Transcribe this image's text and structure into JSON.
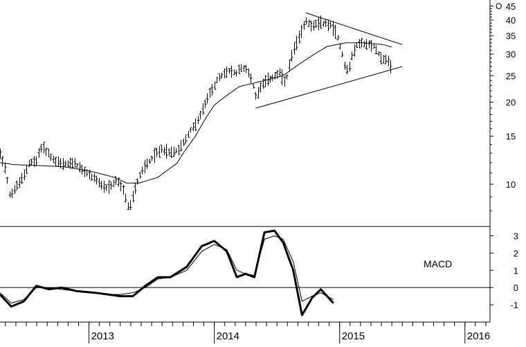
{
  "chart_data": [
    {
      "type": "ohlc",
      "scale": "log",
      "ylim": [
        7,
        46
      ],
      "yticks": [
        10,
        15,
        20,
        25,
        30,
        35,
        40,
        45
      ],
      "xlabels": [
        {
          "label": "2013",
          "t": 2013.0
        },
        {
          "label": "2014",
          "t": 2014.0
        },
        {
          "label": "2015",
          "t": 2015.0
        },
        {
          "label": "2016",
          "t": 2016.0
        }
      ],
      "price_anchors": [
        [
          2012.29,
          13.0
        ],
        [
          2012.33,
          11.5
        ],
        [
          2012.37,
          9.0
        ],
        [
          2012.42,
          9.8
        ],
        [
          2012.47,
          10.5
        ],
        [
          2012.52,
          12.0
        ],
        [
          2012.58,
          12.2
        ],
        [
          2012.62,
          13.8
        ],
        [
          2012.67,
          13.0
        ],
        [
          2012.72,
          12.2
        ],
        [
          2012.8,
          11.8
        ],
        [
          2012.88,
          12.0
        ],
        [
          2012.95,
          11.2
        ],
        [
          2013.05,
          10.5
        ],
        [
          2013.12,
          9.6
        ],
        [
          2013.17,
          9.8
        ],
        [
          2013.22,
          10.4
        ],
        [
          2013.27,
          9.5
        ],
        [
          2013.32,
          8.0
        ],
        [
          2013.36,
          9.5
        ],
        [
          2013.42,
          11.2
        ],
        [
          2013.5,
          12.5
        ],
        [
          2013.58,
          13.5
        ],
        [
          2013.65,
          13.0
        ],
        [
          2013.72,
          13.5
        ],
        [
          2013.8,
          15.5
        ],
        [
          2013.88,
          17.5
        ],
        [
          2013.95,
          21.0
        ],
        [
          2014.02,
          24.0
        ],
        [
          2014.1,
          26.0
        ],
        [
          2014.17,
          25.5
        ],
        [
          2014.22,
          27.0
        ],
        [
          2014.28,
          25.5
        ],
        [
          2014.33,
          21.0
        ],
        [
          2014.38,
          23.5
        ],
        [
          2014.45,
          24.5
        ],
        [
          2014.52,
          25.5
        ],
        [
          2014.57,
          23.5
        ],
        [
          2014.62,
          30.0
        ],
        [
          2014.68,
          35.0
        ],
        [
          2014.73,
          40.0
        ],
        [
          2014.78,
          38.0
        ],
        [
          2014.85,
          39.0
        ],
        [
          2014.92,
          38.5
        ],
        [
          2014.97,
          36.0
        ],
        [
          2015.02,
          30.0
        ],
        [
          2015.05,
          26.0
        ],
        [
          2015.08,
          27.0
        ],
        [
          2015.1,
          30.0
        ],
        [
          2015.15,
          33.0
        ],
        [
          2015.22,
          32.5
        ],
        [
          2015.28,
          32.0
        ],
        [
          2015.33,
          29.0
        ],
        [
          2015.38,
          28.5
        ],
        [
          2015.42,
          26.5
        ]
      ],
      "sma_anchors": [
        [
          2012.29,
          12.0
        ],
        [
          2012.4,
          11.8
        ],
        [
          2012.6,
          11.7
        ],
        [
          2012.8,
          11.6
        ],
        [
          2013.0,
          11.2
        ],
        [
          2013.2,
          10.6
        ],
        [
          2013.3,
          10.1
        ],
        [
          2013.4,
          10.1
        ],
        [
          2013.55,
          10.6
        ],
        [
          2013.7,
          11.9
        ],
        [
          2013.85,
          15.0
        ],
        [
          2014.0,
          19.5
        ],
        [
          2014.2,
          22.8
        ],
        [
          2014.4,
          24.0
        ],
        [
          2014.55,
          25.0
        ],
        [
          2014.7,
          28.0
        ],
        [
          2014.9,
          32.0
        ],
        [
          2015.05,
          33.0
        ],
        [
          2015.2,
          33.0
        ],
        [
          2015.35,
          32.5
        ],
        [
          2015.42,
          31.8
        ]
      ],
      "trendlines": [
        {
          "name": "resistance",
          "points": [
            [
              2014.73,
              42.5
            ],
            [
              2015.5,
              32.5
            ]
          ]
        },
        {
          "name": "support",
          "points": [
            [
              2014.33,
              19.0
            ],
            [
              2015.5,
              27.0
            ]
          ]
        }
      ],
      "watermark": "O"
    },
    {
      "type": "line",
      "title": "MACD",
      "ylim": [
        -2,
        3.5
      ],
      "yticks": [
        -1,
        0,
        1,
        2,
        3
      ],
      "series": [
        {
          "role": "macd",
          "points": [
            [
              2012.29,
              -0.4
            ],
            [
              2012.38,
              -1.1
            ],
            [
              2012.48,
              -0.8
            ],
            [
              2012.58,
              0.1
            ],
            [
              2012.68,
              -0.1
            ],
            [
              2012.78,
              0.0
            ],
            [
              2012.9,
              -0.2
            ],
            [
              2013.05,
              -0.3
            ],
            [
              2013.15,
              -0.4
            ],
            [
              2013.25,
              -0.5
            ],
            [
              2013.35,
              -0.5
            ],
            [
              2013.45,
              0.1
            ],
            [
              2013.55,
              0.6
            ],
            [
              2013.65,
              0.6
            ],
            [
              2013.78,
              1.2
            ],
            [
              2013.9,
              2.4
            ],
            [
              2014.0,
              2.7
            ],
            [
              2014.1,
              2.1
            ],
            [
              2014.18,
              0.6
            ],
            [
              2014.25,
              0.8
            ],
            [
              2014.32,
              0.6
            ],
            [
              2014.4,
              3.2
            ],
            [
              2014.48,
              3.3
            ],
            [
              2014.55,
              2.6
            ],
            [
              2014.63,
              1.0
            ],
            [
              2014.7,
              -1.6
            ],
            [
              2014.78,
              -0.6
            ],
            [
              2014.85,
              -0.1
            ],
            [
              2014.95,
              -0.9
            ]
          ]
        },
        {
          "role": "signal",
          "points": [
            [
              2012.29,
              -0.3
            ],
            [
              2012.38,
              -0.9
            ],
            [
              2012.48,
              -0.7
            ],
            [
              2012.58,
              0.0
            ],
            [
              2012.68,
              0.0
            ],
            [
              2012.78,
              -0.1
            ],
            [
              2012.9,
              -0.2
            ],
            [
              2013.05,
              -0.3
            ],
            [
              2013.15,
              -0.4
            ],
            [
              2013.25,
              -0.4
            ],
            [
              2013.35,
              -0.3
            ],
            [
              2013.45,
              0.0
            ],
            [
              2013.55,
              0.5
            ],
            [
              2013.65,
              0.6
            ],
            [
              2013.78,
              1.0
            ],
            [
              2013.9,
              2.1
            ],
            [
              2014.0,
              2.5
            ],
            [
              2014.1,
              2.2
            ],
            [
              2014.18,
              1.0
            ],
            [
              2014.25,
              0.8
            ],
            [
              2014.32,
              0.7
            ],
            [
              2014.4,
              2.8
            ],
            [
              2014.48,
              3.0
            ],
            [
              2014.55,
              2.8
            ],
            [
              2014.63,
              1.5
            ],
            [
              2014.7,
              -0.8
            ],
            [
              2014.78,
              -0.5
            ],
            [
              2014.85,
              -0.3
            ],
            [
              2014.95,
              -0.7
            ]
          ]
        }
      ]
    }
  ]
}
